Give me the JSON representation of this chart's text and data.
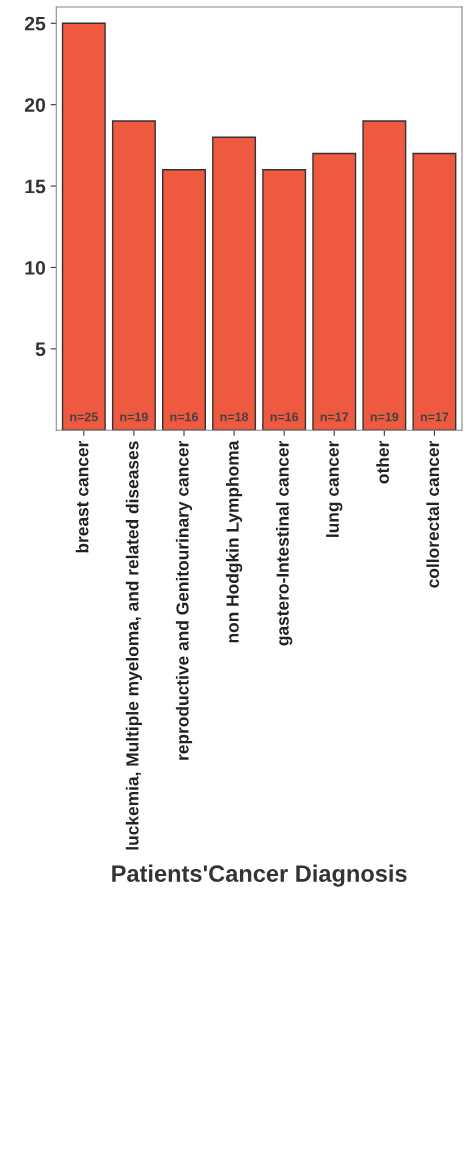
{
  "chart_data": {
    "type": "bar",
    "xlabel": "Patients'Cancer Diagnosis",
    "categories": [
      "breast cancer",
      "luckemia, Multiple myeloma, and related diseases",
      "reproductive and Genitourinary cancer",
      "non Hodgkin Lymphoma",
      "gastero-Intestinal cancer",
      "lung cancer",
      "other",
      "collorectal cancer"
    ],
    "values": [
      25,
      19,
      16,
      18,
      16,
      17,
      19,
      17
    ],
    "value_labels": [
      "n=25",
      "n=19",
      "n=16",
      "n=18",
      "n=16",
      "n=17",
      "n=19",
      "n=17"
    ],
    "color": "#ef593f",
    "ylim": [
      0,
      26
    ],
    "yticks": [
      5,
      10,
      15,
      20,
      25
    ],
    "grid": false,
    "legend": false
  }
}
